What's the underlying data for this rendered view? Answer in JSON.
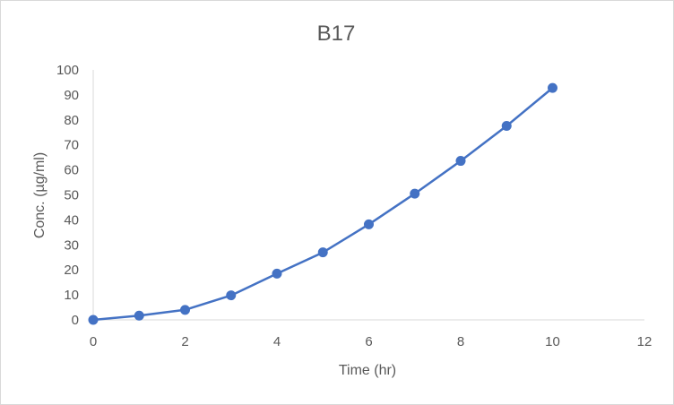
{
  "chart_data": {
    "type": "scatter",
    "title": "B17",
    "xlabel": "Time (hr)",
    "ylabel": "Conc. (µg/ml)",
    "xlim": [
      0,
      12
    ],
    "ylim": [
      0,
      100
    ],
    "x_ticks": [
      "0",
      "2",
      "4",
      "6",
      "8",
      "10",
      "12"
    ],
    "y_ticks": [
      "0",
      "10",
      "20",
      "30",
      "40",
      "50",
      "60",
      "70",
      "80",
      "90",
      "100"
    ],
    "grid": false,
    "legend": "none",
    "series": [
      {
        "x": [
          0,
          1,
          2,
          3,
          4,
          5,
          6,
          7,
          8,
          9,
          10
        ],
        "y": [
          0,
          1.7,
          4.0,
          9.8,
          18.5,
          27.0,
          38.2,
          50.5,
          63.6,
          77.6,
          92.8
        ],
        "style": "line-with-markers"
      }
    ],
    "colors": {
      "series": "#4472c4",
      "axis": "#d9d9d9",
      "text": "#595959"
    }
  }
}
